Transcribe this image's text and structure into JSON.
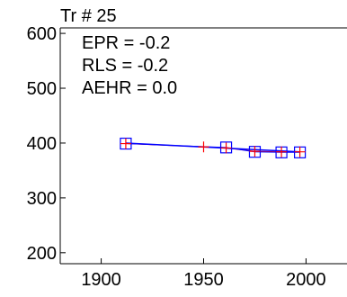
{
  "chart_data": {
    "type": "line",
    "title": "Tr # 25",
    "xlabel": "",
    "ylabel": "",
    "xlim": [
      1880,
      2020
    ],
    "ylim": [
      180,
      610
    ],
    "xticks": [
      1900,
      1950,
      2000
    ],
    "yticks": [
      200,
      300,
      400,
      500,
      600
    ],
    "xtick_labels": [
      "1900",
      "1950",
      "2000"
    ],
    "ytick_labels": [
      "200",
      "300",
      "400",
      "500",
      "600"
    ],
    "grid": false,
    "annotations": [
      "EPR = -0.2",
      "RLS = -0.2",
      "AEHR = 0.0"
    ],
    "series": [
      {
        "marker": "square",
        "color": "#0000ff",
        "x": [
          1912,
          1961,
          1975,
          1988,
          1997
        ],
        "y": [
          399,
          392,
          384,
          383,
          383
        ]
      },
      {
        "marker": "plus",
        "color": "#ff0000",
        "x": [
          1912,
          1950,
          1961,
          1975,
          1988,
          1997
        ],
        "y": [
          399,
          393,
          391,
          385,
          384,
          384
        ]
      }
    ],
    "fit_line": {
      "color": "#0000ff",
      "x": [
        1912,
        1997
      ],
      "y": [
        400,
        384
      ]
    }
  }
}
